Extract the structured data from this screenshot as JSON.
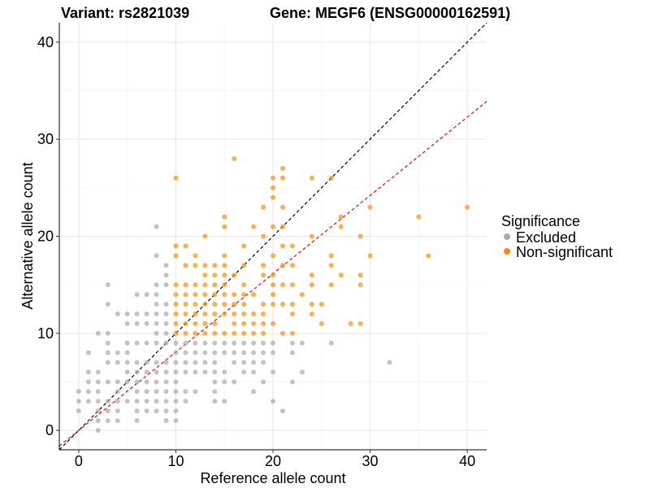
{
  "chart_data": {
    "type": "scatter",
    "title_left": "Variant: rs2821039",
    "title_right": "Gene: MEGF6 (ENSG00000162591)",
    "xlabel": "Reference allele count",
    "ylabel": "Alternative allele count",
    "xlim": [
      -2,
      42
    ],
    "ylim": [
      -2,
      42
    ],
    "xticks": [
      0,
      10,
      20,
      30,
      40
    ],
    "yticks": [
      0,
      10,
      20,
      30,
      40
    ],
    "grid": true,
    "legend": {
      "title": "Significance",
      "placement": "right",
      "entries": [
        "Excluded",
        "Non-significant"
      ]
    },
    "colors": {
      "Excluded": "#a9a9a9",
      "Non-significant": "#ff8c00",
      "identity_line": "#000000",
      "fit_line": "#ff0000"
    },
    "lines": [
      {
        "name": "identity",
        "slope": 1,
        "intercept": 0,
        "style": "dashed"
      },
      {
        "name": "fit",
        "slope": 0.807,
        "intercept": 0,
        "style": "dashed"
      }
    ],
    "series": [
      {
        "name": "Excluded",
        "points": [
          [
            2,
            0
          ],
          [
            2,
            1
          ],
          [
            3,
            1
          ],
          [
            4,
            1
          ],
          [
            6,
            1
          ],
          [
            9,
            1
          ],
          [
            10,
            1
          ],
          [
            0,
            2
          ],
          [
            2,
            2
          ],
          [
            3,
            2
          ],
          [
            4,
            2
          ],
          [
            6,
            2
          ],
          [
            7,
            2
          ],
          [
            8,
            2
          ],
          [
            9,
            2
          ],
          [
            10,
            2
          ],
          [
            21,
            2
          ],
          [
            0,
            3
          ],
          [
            1,
            3
          ],
          [
            2,
            3
          ],
          [
            3,
            3
          ],
          [
            4,
            3
          ],
          [
            5,
            3
          ],
          [
            6,
            3
          ],
          [
            7,
            3
          ],
          [
            8,
            3
          ],
          [
            9,
            3
          ],
          [
            10,
            3
          ],
          [
            11,
            3
          ],
          [
            14,
            3
          ],
          [
            15,
            3
          ],
          [
            20,
            3
          ],
          [
            0,
            4
          ],
          [
            1,
            4
          ],
          [
            2,
            4
          ],
          [
            4,
            4
          ],
          [
            6,
            4
          ],
          [
            7,
            4
          ],
          [
            8,
            4
          ],
          [
            9,
            4
          ],
          [
            10,
            4
          ],
          [
            11,
            4
          ],
          [
            12,
            4
          ],
          [
            14,
            4
          ],
          [
            18,
            4
          ],
          [
            1,
            5
          ],
          [
            2,
            5
          ],
          [
            3,
            5
          ],
          [
            4,
            5
          ],
          [
            5,
            5
          ],
          [
            6,
            5
          ],
          [
            7,
            5
          ],
          [
            8,
            5
          ],
          [
            9,
            5
          ],
          [
            10,
            5
          ],
          [
            14,
            5
          ],
          [
            15,
            5
          ],
          [
            16,
            5
          ],
          [
            19,
            5
          ],
          [
            22,
            5
          ],
          [
            1,
            6
          ],
          [
            2,
            6
          ],
          [
            5,
            6
          ],
          [
            6,
            6
          ],
          [
            7,
            6
          ],
          [
            8,
            6
          ],
          [
            9,
            6
          ],
          [
            10,
            6
          ],
          [
            11,
            6
          ],
          [
            12,
            6
          ],
          [
            13,
            6
          ],
          [
            14,
            6
          ],
          [
            15,
            6
          ],
          [
            17,
            6
          ],
          [
            18,
            6
          ],
          [
            20,
            6
          ],
          [
            23,
            6
          ],
          [
            3,
            7
          ],
          [
            4,
            7
          ],
          [
            5,
            7
          ],
          [
            6,
            7
          ],
          [
            7,
            7
          ],
          [
            8,
            7
          ],
          [
            9,
            7
          ],
          [
            10,
            7
          ],
          [
            11,
            7
          ],
          [
            12,
            7
          ],
          [
            13,
            7
          ],
          [
            14,
            7
          ],
          [
            16,
            7
          ],
          [
            17,
            7
          ],
          [
            18,
            7
          ],
          [
            19,
            7
          ],
          [
            32,
            7
          ],
          [
            1,
            8
          ],
          [
            3,
            8
          ],
          [
            4,
            8
          ],
          [
            5,
            8
          ],
          [
            10,
            8
          ],
          [
            11,
            8
          ],
          [
            12,
            8
          ],
          [
            13,
            8
          ],
          [
            14,
            8
          ],
          [
            15,
            8
          ],
          [
            16,
            8
          ],
          [
            17,
            8
          ],
          [
            18,
            8
          ],
          [
            19,
            8
          ],
          [
            20,
            8
          ],
          [
            22,
            8
          ],
          [
            3,
            9
          ],
          [
            5,
            9
          ],
          [
            6,
            9
          ],
          [
            7,
            9
          ],
          [
            8,
            9
          ],
          [
            9,
            9
          ],
          [
            10,
            9
          ],
          [
            11,
            9
          ],
          [
            12,
            9
          ],
          [
            13,
            9
          ],
          [
            14,
            9
          ],
          [
            15,
            9
          ],
          [
            16,
            9
          ],
          [
            17,
            9
          ],
          [
            18,
            9
          ],
          [
            19,
            9
          ],
          [
            20,
            9
          ],
          [
            22,
            9
          ],
          [
            23,
            9
          ],
          [
            26,
            9
          ],
          [
            2,
            10
          ],
          [
            3,
            10
          ],
          [
            8,
            10
          ],
          [
            9,
            10
          ],
          [
            5,
            11
          ],
          [
            6,
            11
          ],
          [
            7,
            11
          ],
          [
            8,
            11
          ],
          [
            9,
            11
          ],
          [
            4,
            12
          ],
          [
            5,
            12
          ],
          [
            6,
            12
          ],
          [
            7,
            12
          ],
          [
            8,
            12
          ],
          [
            9,
            12
          ],
          [
            3,
            13
          ],
          [
            8,
            13
          ],
          [
            9,
            13
          ],
          [
            6,
            14
          ],
          [
            7,
            14
          ],
          [
            8,
            14
          ],
          [
            3,
            15
          ],
          [
            8,
            15
          ],
          [
            9,
            15
          ],
          [
            9,
            16
          ],
          [
            9,
            17
          ],
          [
            8,
            18
          ],
          [
            8,
            21
          ]
        ]
      },
      {
        "name": "Non-significant",
        "points": [
          [
            10,
            10
          ],
          [
            11,
            10
          ],
          [
            12,
            10
          ],
          [
            13,
            10
          ],
          [
            14,
            10
          ],
          [
            15,
            10
          ],
          [
            16,
            10
          ],
          [
            17,
            10
          ],
          [
            18,
            10
          ],
          [
            19,
            10
          ],
          [
            21,
            10
          ],
          [
            22,
            10
          ],
          [
            10,
            11
          ],
          [
            11,
            11
          ],
          [
            12,
            11
          ],
          [
            13,
            11
          ],
          [
            14,
            11
          ],
          [
            16,
            11
          ],
          [
            17,
            11
          ],
          [
            18,
            11
          ],
          [
            19,
            11
          ],
          [
            20,
            11
          ],
          [
            25,
            11
          ],
          [
            28,
            11
          ],
          [
            29,
            11
          ],
          [
            10,
            12
          ],
          [
            11,
            12
          ],
          [
            12,
            12
          ],
          [
            13,
            12
          ],
          [
            14,
            12
          ],
          [
            15,
            12
          ],
          [
            16,
            12
          ],
          [
            17,
            12
          ],
          [
            18,
            12
          ],
          [
            19,
            12
          ],
          [
            22,
            12
          ],
          [
            24,
            12
          ],
          [
            10,
            13
          ],
          [
            11,
            13
          ],
          [
            12,
            13
          ],
          [
            13,
            13
          ],
          [
            14,
            13
          ],
          [
            15,
            13
          ],
          [
            16,
            13
          ],
          [
            17,
            13
          ],
          [
            19,
            13
          ],
          [
            20,
            13
          ],
          [
            21,
            13
          ],
          [
            22,
            13
          ],
          [
            24,
            13
          ],
          [
            25,
            13
          ],
          [
            10,
            14
          ],
          [
            11,
            14
          ],
          [
            12,
            14
          ],
          [
            13,
            14
          ],
          [
            14,
            14
          ],
          [
            15,
            14
          ],
          [
            16,
            14
          ],
          [
            17,
            14
          ],
          [
            18,
            14
          ],
          [
            20,
            14
          ],
          [
            23,
            14
          ],
          [
            10,
            15
          ],
          [
            11,
            15
          ],
          [
            12,
            15
          ],
          [
            13,
            15
          ],
          [
            14,
            15
          ],
          [
            15,
            15
          ],
          [
            17,
            15
          ],
          [
            20,
            15
          ],
          [
            21,
            15
          ],
          [
            22,
            15
          ],
          [
            24,
            15
          ],
          [
            26,
            15
          ],
          [
            29,
            15
          ],
          [
            13,
            16
          ],
          [
            14,
            16
          ],
          [
            15,
            16
          ],
          [
            16,
            16
          ],
          [
            19,
            16
          ],
          [
            20,
            16
          ],
          [
            24,
            16
          ],
          [
            27,
            16
          ],
          [
            29,
            16
          ],
          [
            11,
            17
          ],
          [
            12,
            17
          ],
          [
            13,
            17
          ],
          [
            14,
            17
          ],
          [
            15,
            17
          ],
          [
            17,
            17
          ],
          [
            19,
            17
          ],
          [
            21,
            17
          ],
          [
            22,
            17
          ],
          [
            26,
            17
          ],
          [
            10,
            18
          ],
          [
            12,
            18
          ],
          [
            15,
            18
          ],
          [
            20,
            18
          ],
          [
            26,
            18
          ],
          [
            30,
            18
          ],
          [
            36,
            18
          ],
          [
            10,
            19
          ],
          [
            11,
            19
          ],
          [
            17,
            19
          ],
          [
            21,
            19
          ],
          [
            22,
            19
          ],
          [
            13,
            20
          ],
          [
            19,
            20
          ],
          [
            24,
            20
          ],
          [
            29,
            20
          ],
          [
            15,
            21
          ],
          [
            18,
            21
          ],
          [
            20,
            21
          ],
          [
            21,
            21
          ],
          [
            27,
            21
          ],
          [
            15,
            22
          ],
          [
            27,
            22
          ],
          [
            35,
            22
          ],
          [
            19,
            23
          ],
          [
            21,
            23
          ],
          [
            30,
            23
          ],
          [
            40,
            23
          ],
          [
            20,
            24
          ],
          [
            20,
            25
          ],
          [
            10,
            26
          ],
          [
            20,
            26
          ],
          [
            21,
            26
          ],
          [
            24,
            26
          ],
          [
            26,
            26
          ],
          [
            21,
            27
          ],
          [
            16,
            28
          ]
        ]
      }
    ]
  }
}
